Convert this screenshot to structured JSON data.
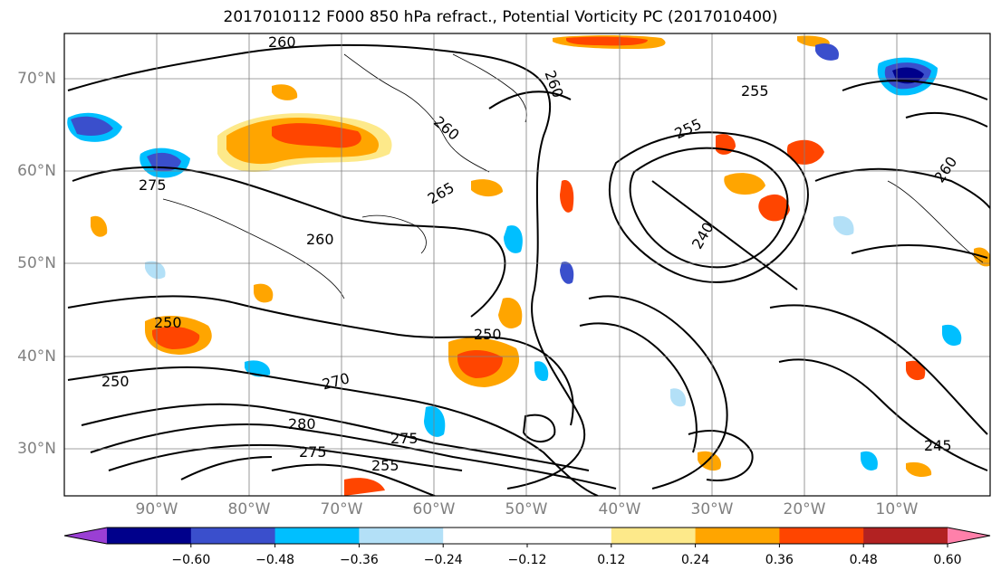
{
  "title": "2017010112 F000 850 hPa refract., Potential Vorticity PC (2017010400)",
  "lat_labels": [
    "70°N",
    "60°N",
    "50°N",
    "40°N",
    "30°N"
  ],
  "lon_labels": [
    "90°W",
    "80°W",
    "70°W",
    "60°W",
    "50°W",
    "40°W",
    "30°W",
    "20°W",
    "10°W"
  ],
  "colorbar": {
    "colors": [
      "#9a3fd4",
      "#00008b",
      "#3a4fcc",
      "#00bfff",
      "#b3e0f7",
      "#ffffff",
      "#ffffff",
      "#fde98a",
      "#ffa500",
      "#ff4500",
      "#b22222",
      "#ff80aa"
    ],
    "ticks": [
      "−0.60",
      "−0.48",
      "−0.36",
      "−0.24",
      "−0.12",
      "0.12",
      "0.24",
      "0.36",
      "0.48",
      "0.60"
    ]
  },
  "contour_labels": [
    "260",
    "260",
    "260",
    "265",
    "255",
    "255",
    "275",
    "260",
    "250",
    "250",
    "250",
    "270",
    "275",
    "275",
    "280",
    "255",
    "245",
    "240",
    "260"
  ]
}
